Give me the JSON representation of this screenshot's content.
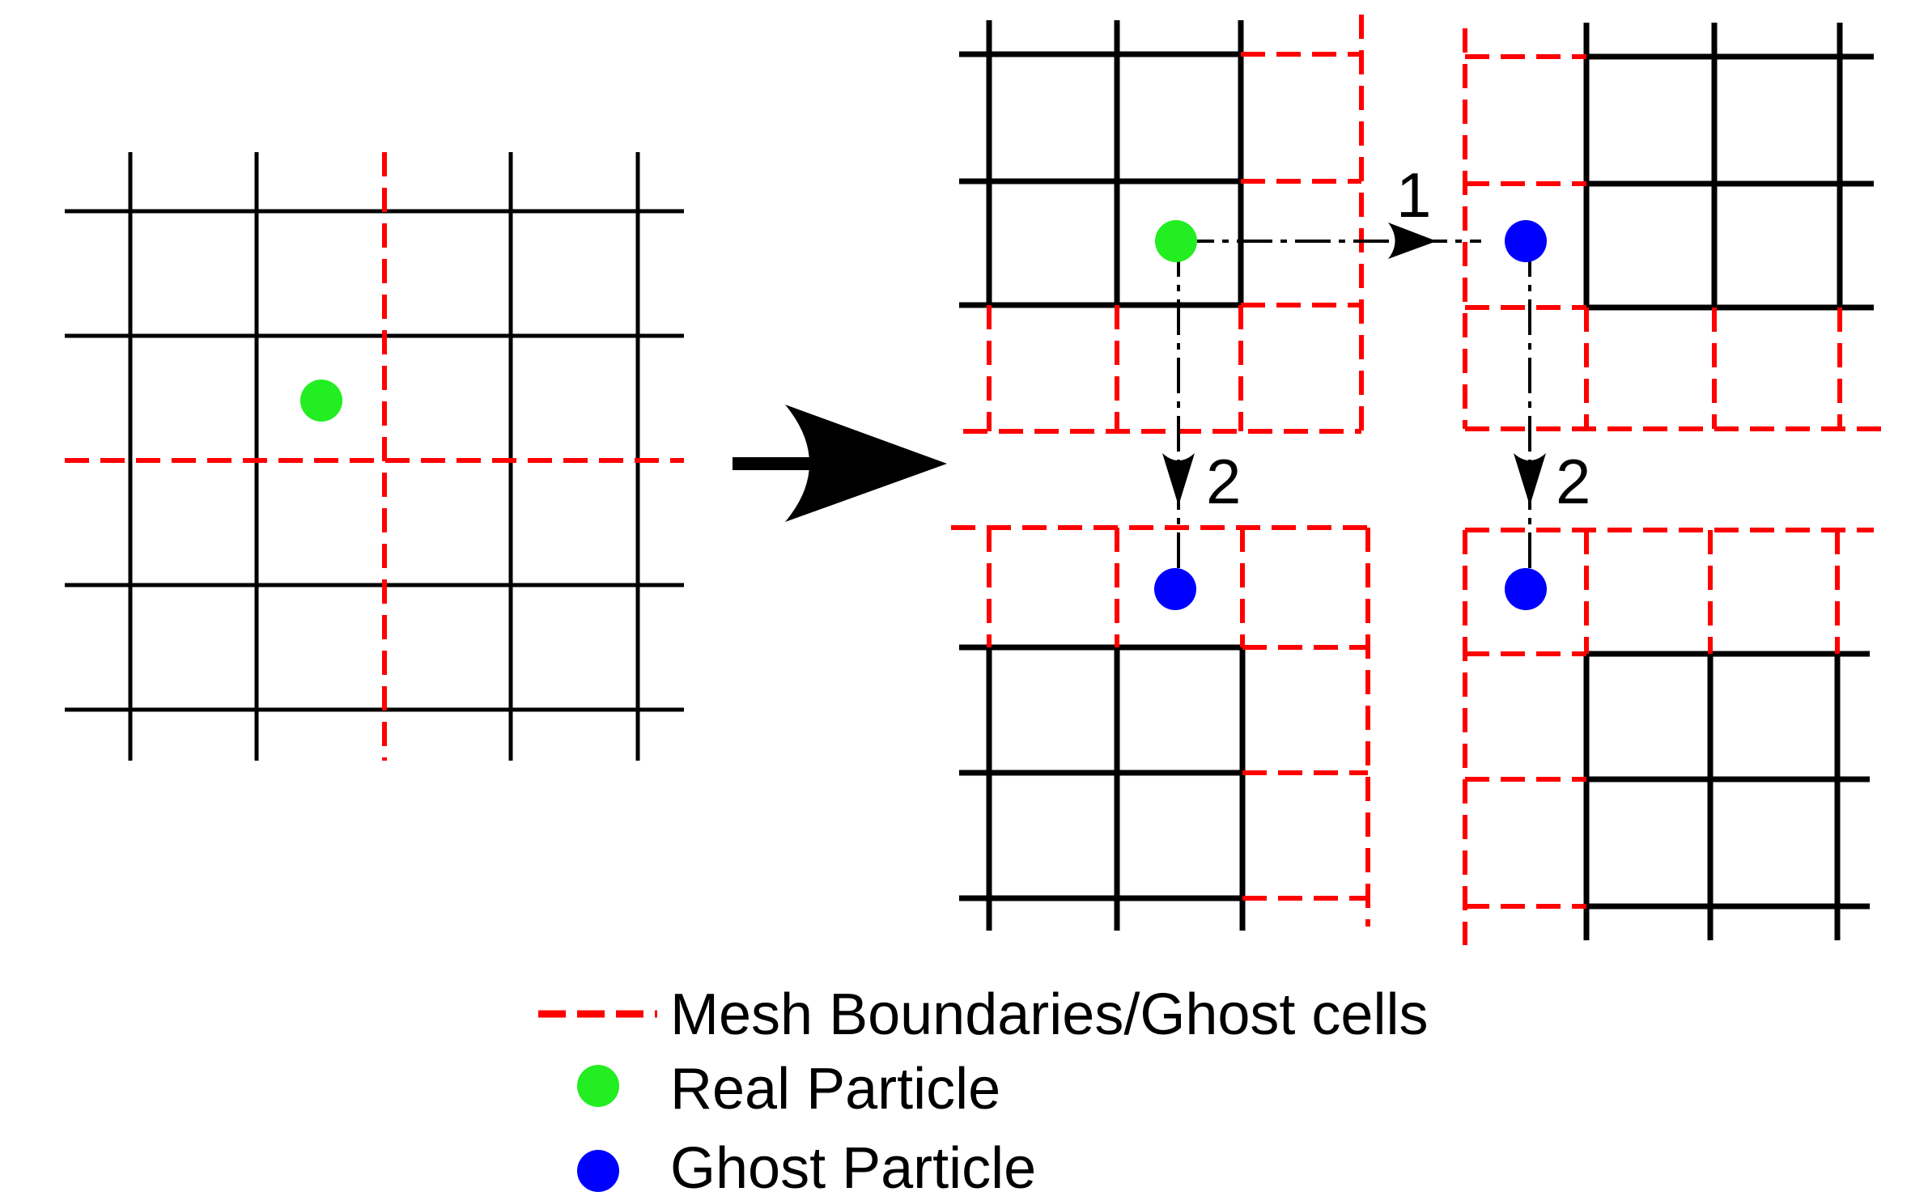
{
  "colors": {
    "grid": "#000000",
    "boundary": "#ff0000",
    "real_particle": "#22ee22",
    "ghost_particle": "#0000ff",
    "arrow": "#000000",
    "background": "#ffffff"
  },
  "source_mesh": {
    "cell_rows": 4,
    "cell_cols": 4,
    "real_particle": {
      "col": 1,
      "row": 1,
      "fx": 0.5,
      "fy": 0.5
    }
  },
  "decomposed_meshes": [
    {
      "name": "top-left",
      "particle": "real"
    },
    {
      "name": "top-right",
      "particle": "ghost"
    },
    {
      "name": "bottom-left",
      "particle": "ghost"
    },
    {
      "name": "bottom-right",
      "particle": "ghost"
    }
  ],
  "transfer_steps": [
    {
      "label": "1",
      "from": "top-left",
      "to": "top-right",
      "direction": "horizontal"
    },
    {
      "label": "2",
      "from": "top-left",
      "to": "bottom-left",
      "direction": "vertical"
    },
    {
      "label": "2",
      "from": "top-right",
      "to": "bottom-right",
      "direction": "vertical"
    }
  ],
  "legend": {
    "boundary_label": "Mesh Boundaries/Ghost cells",
    "real_label": "Real Particle",
    "ghost_label": "Ghost Particle",
    "boundary_icon": "red-dashed-line-icon",
    "real_icon": "green-dot-icon",
    "ghost_icon": "blue-dot-icon"
  }
}
